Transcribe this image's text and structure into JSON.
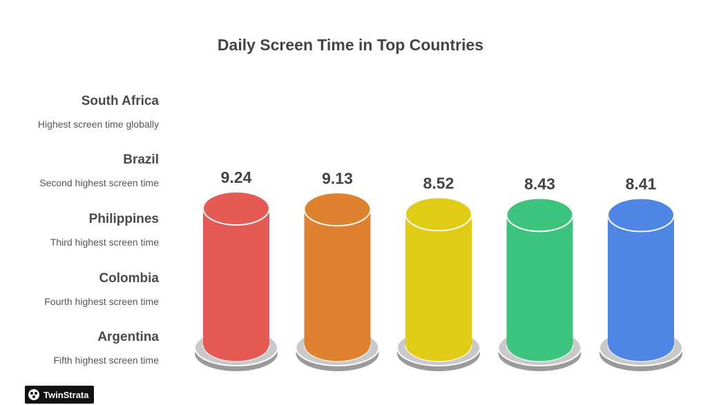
{
  "title": "Daily Screen Time in Top Countries",
  "legend": [
    {
      "name": "South Africa",
      "desc": "Highest screen time globally"
    },
    {
      "name": "Brazil",
      "desc": "Second highest screen time"
    },
    {
      "name": "Philippines",
      "desc": "Third highest screen time"
    },
    {
      "name": "Colombia",
      "desc": "Fourth highest screen time"
    },
    {
      "name": "Argentina",
      "desc": "Fifth highest screen time"
    }
  ],
  "brand": {
    "name": "TwinStrata"
  },
  "chart_data": {
    "type": "bar",
    "title": "Daily Screen Time in Top Countries",
    "categories": [
      "South Africa",
      "Brazil",
      "Philippines",
      "Colombia",
      "Argentina"
    ],
    "values": [
      9.24,
      9.13,
      8.52,
      8.43,
      8.41
    ],
    "labels": [
      "9.24",
      "9.13",
      "8.52",
      "8.43",
      "8.41"
    ],
    "colors": [
      "#e55a55",
      "#de8230",
      "#e0cc15",
      "#3cc47f",
      "#4f86e6"
    ],
    "grid": false,
    "legend_placement": "left"
  }
}
